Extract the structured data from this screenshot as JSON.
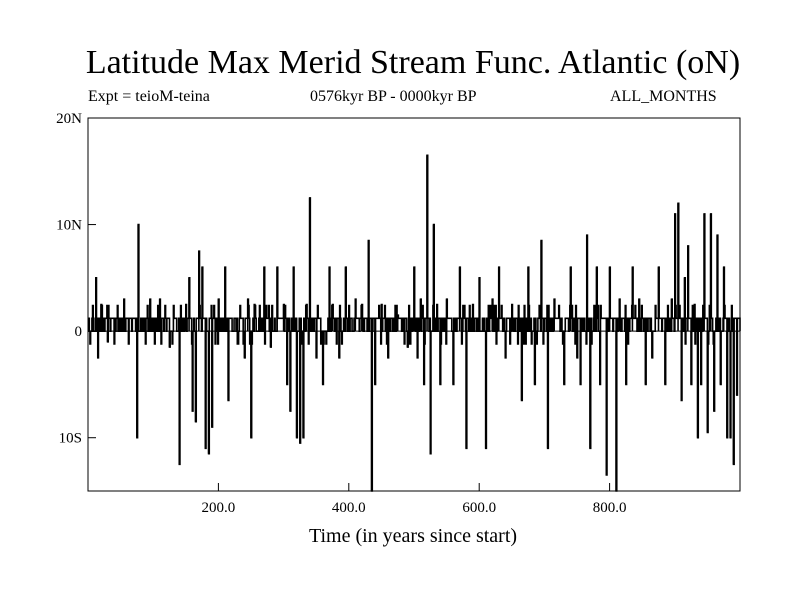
{
  "chart_data": {
    "type": "line",
    "title": "Latitude Max Merid Stream Func. Atlantic (oN)",
    "subtitle_left": "Expt = teioM-teina",
    "subtitle_center": "0576kyr BP - 0000kyr BP",
    "subtitle_right": "ALL_MONTHS",
    "xlabel": "Time (in years since start)",
    "ylabel": "",
    "xlim": [
      0,
      1000
    ],
    "ylim": [
      -15,
      20
    ],
    "x_ticks": [
      {
        "value": 200,
        "label": "200.0"
      },
      {
        "value": 400,
        "label": "400.0"
      },
      {
        "value": 600,
        "label": "600.0"
      },
      {
        "value": 800,
        "label": "800.0"
      }
    ],
    "y_ticks": [
      {
        "value": 20,
        "label": "20N"
      },
      {
        "value": 10,
        "label": "10N"
      },
      {
        "value": 0,
        "label": "0"
      },
      {
        "value": -10,
        "label": "10S"
      }
    ],
    "grid": false,
    "reference_line": 0,
    "series": [
      {
        "spikes": [
          [
            12,
            5
          ],
          [
            15,
            -2.5
          ],
          [
            20,
            2.5
          ],
          [
            30,
            -1
          ],
          [
            55,
            3
          ],
          [
            75,
            -10
          ],
          [
            77,
            10
          ],
          [
            95,
            3
          ],
          [
            110,
            3
          ],
          [
            125,
            -1.5
          ],
          [
            140,
            -12.5
          ],
          [
            150,
            2.5
          ],
          [
            155,
            5
          ],
          [
            160,
            -7.5
          ],
          [
            165,
            -8.5
          ],
          [
            170,
            7.5
          ],
          [
            175,
            6
          ],
          [
            180,
            -11
          ],
          [
            185,
            -11.5
          ],
          [
            190,
            -9
          ],
          [
            200,
            3
          ],
          [
            210,
            6
          ],
          [
            215,
            -6.5
          ],
          [
            240,
            -2.5
          ],
          [
            245,
            3
          ],
          [
            250,
            -10
          ],
          [
            255,
            2.5
          ],
          [
            270,
            6
          ],
          [
            280,
            -1.5
          ],
          [
            290,
            6
          ],
          [
            300,
            2.5
          ],
          [
            305,
            -5
          ],
          [
            310,
            -7.5
          ],
          [
            315,
            6
          ],
          [
            320,
            -10
          ],
          [
            325,
            -10.5
          ],
          [
            330,
            -10
          ],
          [
            335,
            2.5
          ],
          [
            340,
            12.5
          ],
          [
            350,
            -2.5
          ],
          [
            360,
            -5
          ],
          [
            370,
            6
          ],
          [
            375,
            2.5
          ],
          [
            385,
            -2.5
          ],
          [
            395,
            6
          ],
          [
            410,
            3
          ],
          [
            420,
            2.5
          ],
          [
            430,
            8.5
          ],
          [
            435,
            -15
          ],
          [
            440,
            -5
          ],
          [
            450,
            2.5
          ],
          [
            460,
            -2.5
          ],
          [
            475,
            1.5
          ],
          [
            490,
            -1.5
          ],
          [
            500,
            6
          ],
          [
            505,
            -2.5
          ],
          [
            510,
            3
          ],
          [
            515,
            -5
          ],
          [
            520,
            16.5
          ],
          [
            525,
            -11.5
          ],
          [
            530,
            10
          ],
          [
            535,
            2.5
          ],
          [
            540,
            -5
          ],
          [
            550,
            3
          ],
          [
            560,
            -5
          ],
          [
            570,
            6
          ],
          [
            580,
            -11
          ],
          [
            590,
            2.5
          ],
          [
            600,
            5
          ],
          [
            610,
            -11
          ],
          [
            620,
            3
          ],
          [
            630,
            6
          ],
          [
            640,
            -2.5
          ],
          [
            650,
            2.5
          ],
          [
            665,
            -6.5
          ],
          [
            675,
            6
          ],
          [
            685,
            -5
          ],
          [
            695,
            8.5
          ],
          [
            705,
            -11
          ],
          [
            715,
            3
          ],
          [
            730,
            -5
          ],
          [
            740,
            6
          ],
          [
            750,
            -2.5
          ],
          [
            755,
            -5
          ],
          [
            765,
            9
          ],
          [
            770,
            -11
          ],
          [
            780,
            6
          ],
          [
            785,
            -5
          ],
          [
            795,
            -13.5
          ],
          [
            800,
            6
          ],
          [
            810,
            -15
          ],
          [
            815,
            3
          ],
          [
            825,
            -5
          ],
          [
            835,
            6
          ],
          [
            845,
            3
          ],
          [
            855,
            -5
          ],
          [
            865,
            -2.5
          ],
          [
            875,
            6
          ],
          [
            885,
            -5
          ],
          [
            895,
            3
          ],
          [
            900,
            11
          ],
          [
            905,
            12
          ],
          [
            910,
            -6.5
          ],
          [
            915,
            5
          ],
          [
            920,
            8
          ],
          [
            925,
            -5
          ],
          [
            930,
            2.5
          ],
          [
            935,
            -10
          ],
          [
            940,
            -5
          ],
          [
            945,
            11
          ],
          [
            950,
            -9.5
          ],
          [
            955,
            11
          ],
          [
            960,
            -7.5
          ],
          [
            965,
            9
          ],
          [
            970,
            -5
          ],
          [
            975,
            6
          ],
          [
            980,
            -10
          ],
          [
            985,
            -10
          ],
          [
            990,
            -12.5
          ],
          [
            995,
            -6
          ]
        ],
        "baseline_jitter": [
          0,
          1.2
        ]
      }
    ]
  }
}
